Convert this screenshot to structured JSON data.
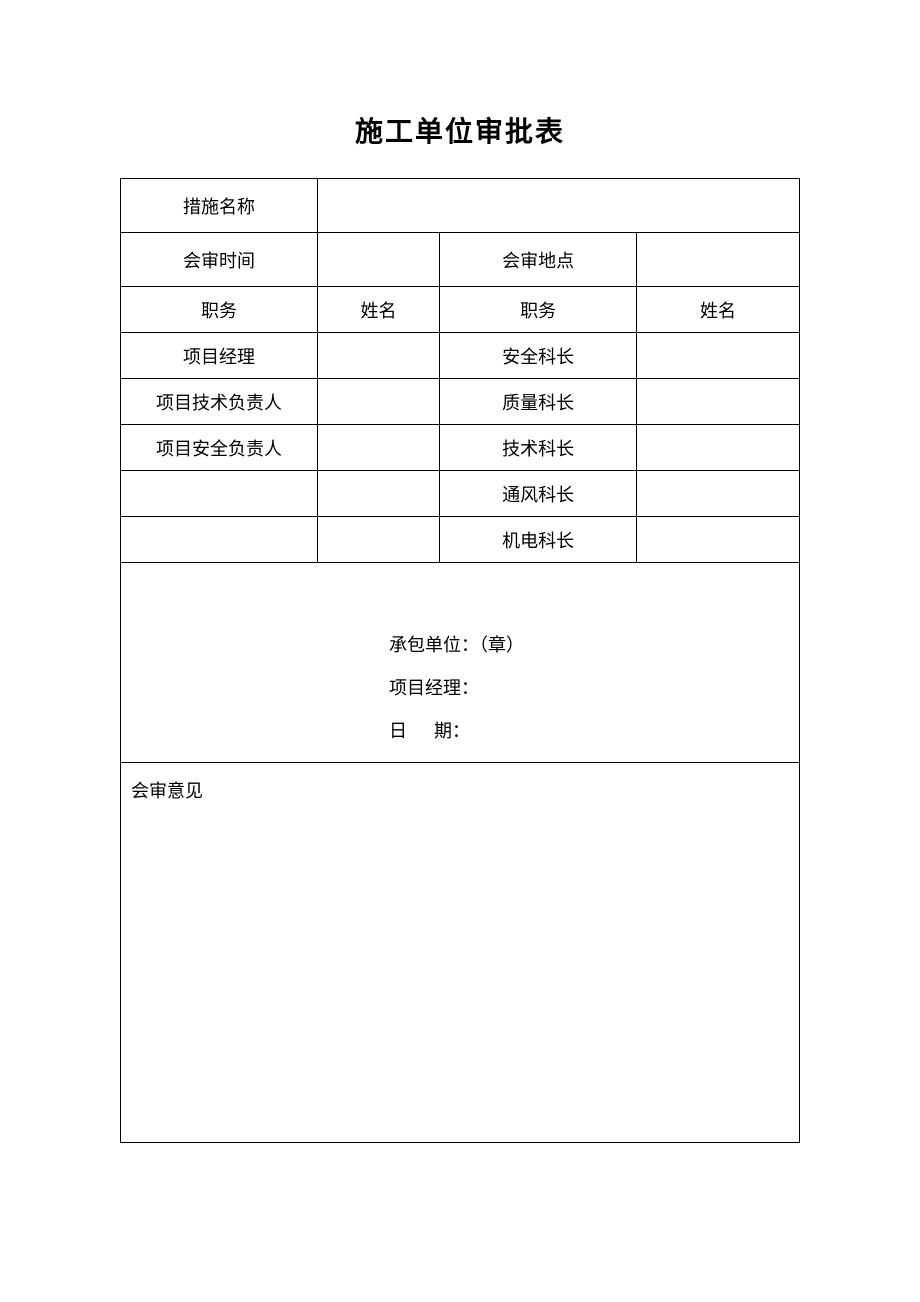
{
  "title": "施工单位审批表",
  "rows": {
    "r1c1": "措施名称",
    "r2c1": "会审时间",
    "r2c3": "会审地点",
    "r3c1": "职务",
    "r3c2": "姓名",
    "r3c3": "职务",
    "r3c4": "姓名",
    "r4c1": "项目经理",
    "r4c3": "安全科长",
    "r5c1": "项目技术负责人",
    "r5c3": "质量科长",
    "r6c1": "项目安全负责人",
    "r6c3": "技术科长",
    "r7c3": "通风科长",
    "r8c3": "机电科长"
  },
  "signature": {
    "line1": "承包单位：（章）",
    "line2": "项目经理：",
    "line3": "日      期："
  },
  "opinion_label": "会审意见",
  "colors": {
    "text": "#000000",
    "border": "#000000",
    "background": "#ffffff"
  }
}
